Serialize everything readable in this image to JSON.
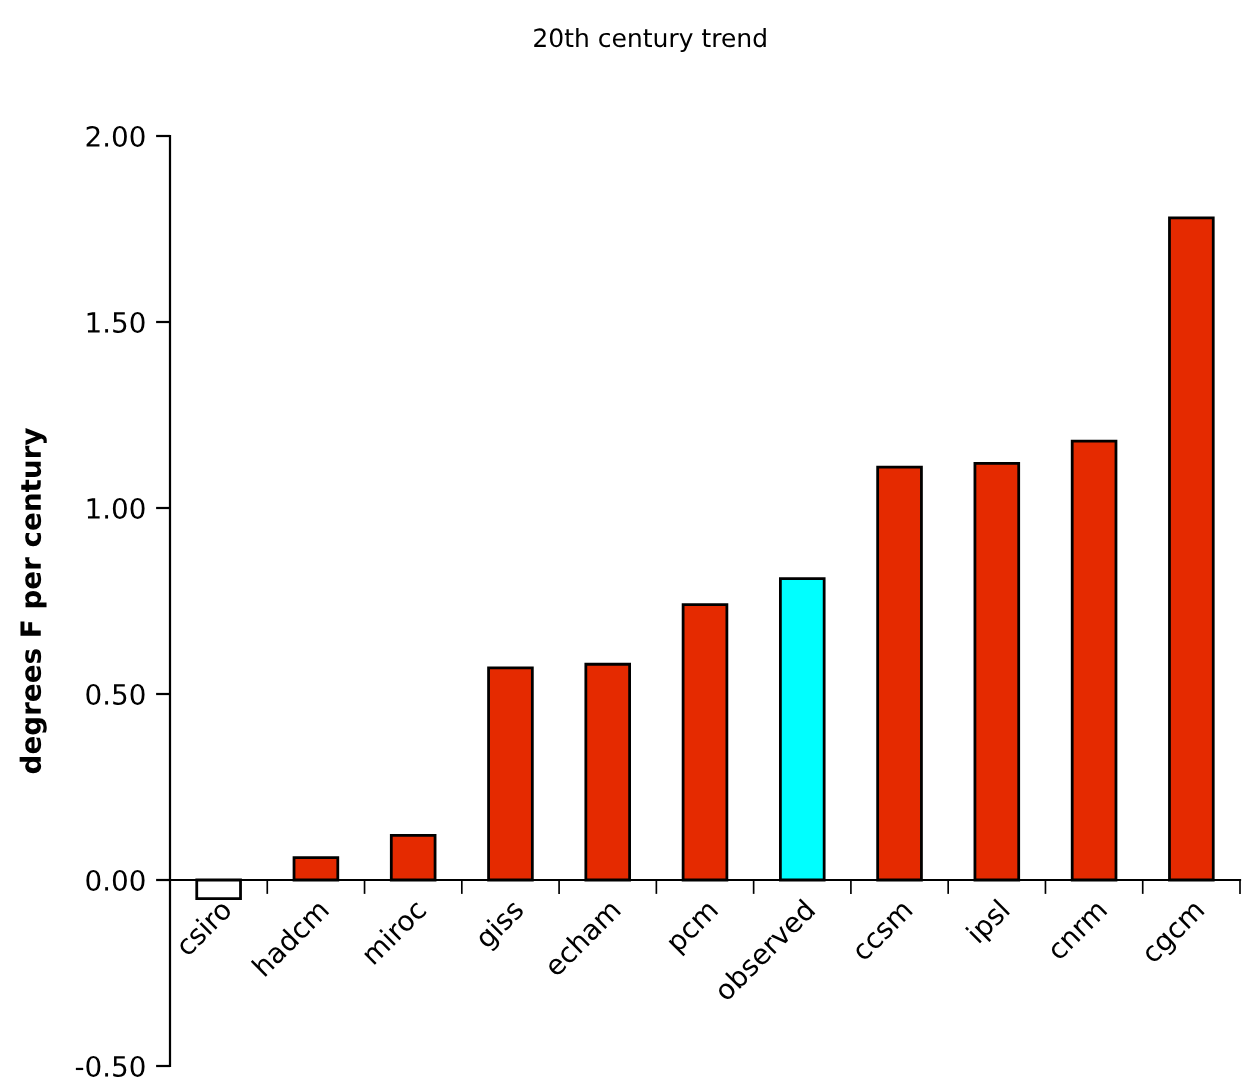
{
  "chart_data": {
    "type": "bar",
    "title": "20th century trend",
    "ylabel": "degrees F per century",
    "categories": [
      "csiro",
      "hadcm",
      "miroc",
      "giss",
      "echam",
      "pcm",
      "observed",
      "ccsm",
      "ipsl",
      "cnrm",
      "cgcm"
    ],
    "values": [
      -0.05,
      0.06,
      0.12,
      0.57,
      0.58,
      0.74,
      0.81,
      1.11,
      1.12,
      1.18,
      1.78
    ],
    "colors": [
      "#ffffff",
      "#e52a00",
      "#e52a00",
      "#e52a00",
      "#e52a00",
      "#e52a00",
      "#00ffff",
      "#e52a00",
      "#e52a00",
      "#e52a00",
      "#e52a00"
    ],
    "ylim": [
      -0.5,
      2.0
    ],
    "yticks": [
      {
        "value": -0.5,
        "label": "-0.50"
      },
      {
        "value": 0,
        "label": "0.00"
      },
      {
        "value": 0.5,
        "label": "0.50"
      },
      {
        "value": 1.0,
        "label": "1.00"
      },
      {
        "value": 1.5,
        "label": "1.50"
      },
      {
        "value": 2.0,
        "label": "2.00"
      }
    ],
    "grid": false,
    "legend": false
  }
}
